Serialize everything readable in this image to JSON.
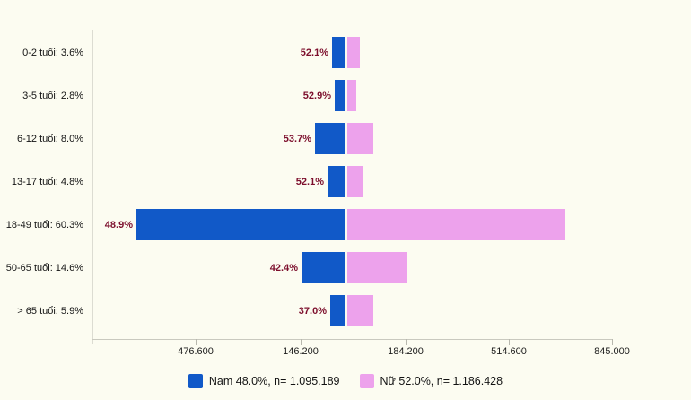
{
  "chart_data": {
    "type": "bar",
    "variant": "population-pyramid-horizontal",
    "title": "",
    "categories": [
      "0-2 tuổi",
      "3-5 tuổi",
      "6-12 tuổi",
      "13-17 tuổi",
      "18-49 tuổi",
      "50-65 tuổi",
      "> 65 tuổi"
    ],
    "rows": [
      {
        "age_label": "0-2 tuổi: 3.6%",
        "age_share_pct": 3.6,
        "male_pct": 52.1,
        "male_pct_label": "52.1%"
      },
      {
        "age_label": "3-5 tuổi: 2.8%",
        "age_share_pct": 2.8,
        "male_pct": 52.9,
        "male_pct_label": "52.9%"
      },
      {
        "age_label": "6-12 tuổi: 8.0%",
        "age_share_pct": 8.0,
        "male_pct": 53.7,
        "male_pct_label": "53.7%"
      },
      {
        "age_label": "13-17 tuổi: 4.8%",
        "age_share_pct": 4.8,
        "male_pct": 52.1,
        "male_pct_label": "52.1%"
      },
      {
        "age_label": "18-49 tuổi: 60.3%",
        "age_share_pct": 60.3,
        "male_pct": 48.9,
        "male_pct_label": "48.9%"
      },
      {
        "age_label": "50-65 tuổi: 14.6%",
        "age_share_pct": 14.6,
        "male_pct": 42.4,
        "male_pct_label": "42.4%"
      },
      {
        "age_label": "> 65 tuổi: 5.9%",
        "age_share_pct": 5.9,
        "male_pct": 37.0,
        "male_pct_label": "37.0%"
      }
    ],
    "x_tick_labels": [
      "476.600",
      "146.200",
      "184.200",
      "514.600",
      "845.000"
    ],
    "legend": {
      "position": "bottom",
      "items": [
        {
          "series": "male",
          "label": "Nam 48.0%, n= 1.095.189",
          "color": "#1159c8"
        },
        {
          "series": "female",
          "label": "Nữ 52.0%, n= 1.186.428",
          "color": "#eda2ec"
        }
      ]
    },
    "colors": {
      "male_bar": "#1159c8",
      "female_bar": "#eda2ec",
      "percent_label": "#7d0f2d",
      "background": "#fcfcf1",
      "axis": "#c9c9bf"
    },
    "axes": {
      "grid": false,
      "x_axis_shown": true,
      "y_axis_shown": true
    }
  }
}
